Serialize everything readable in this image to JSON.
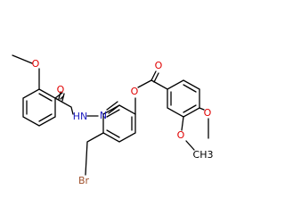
{
  "atoms": [
    {
      "label": "O"
    },
    {
      "label": "O"
    },
    {
      "label": "HN"
    },
    {
      "label": "N"
    },
    {
      "label": "O"
    },
    {
      "label": "O"
    },
    {
      "label": "O"
    },
    {
      "label": "O"
    },
    {
      "label": "CH3"
    },
    {
      "label": "Br"
    }
  ]
}
